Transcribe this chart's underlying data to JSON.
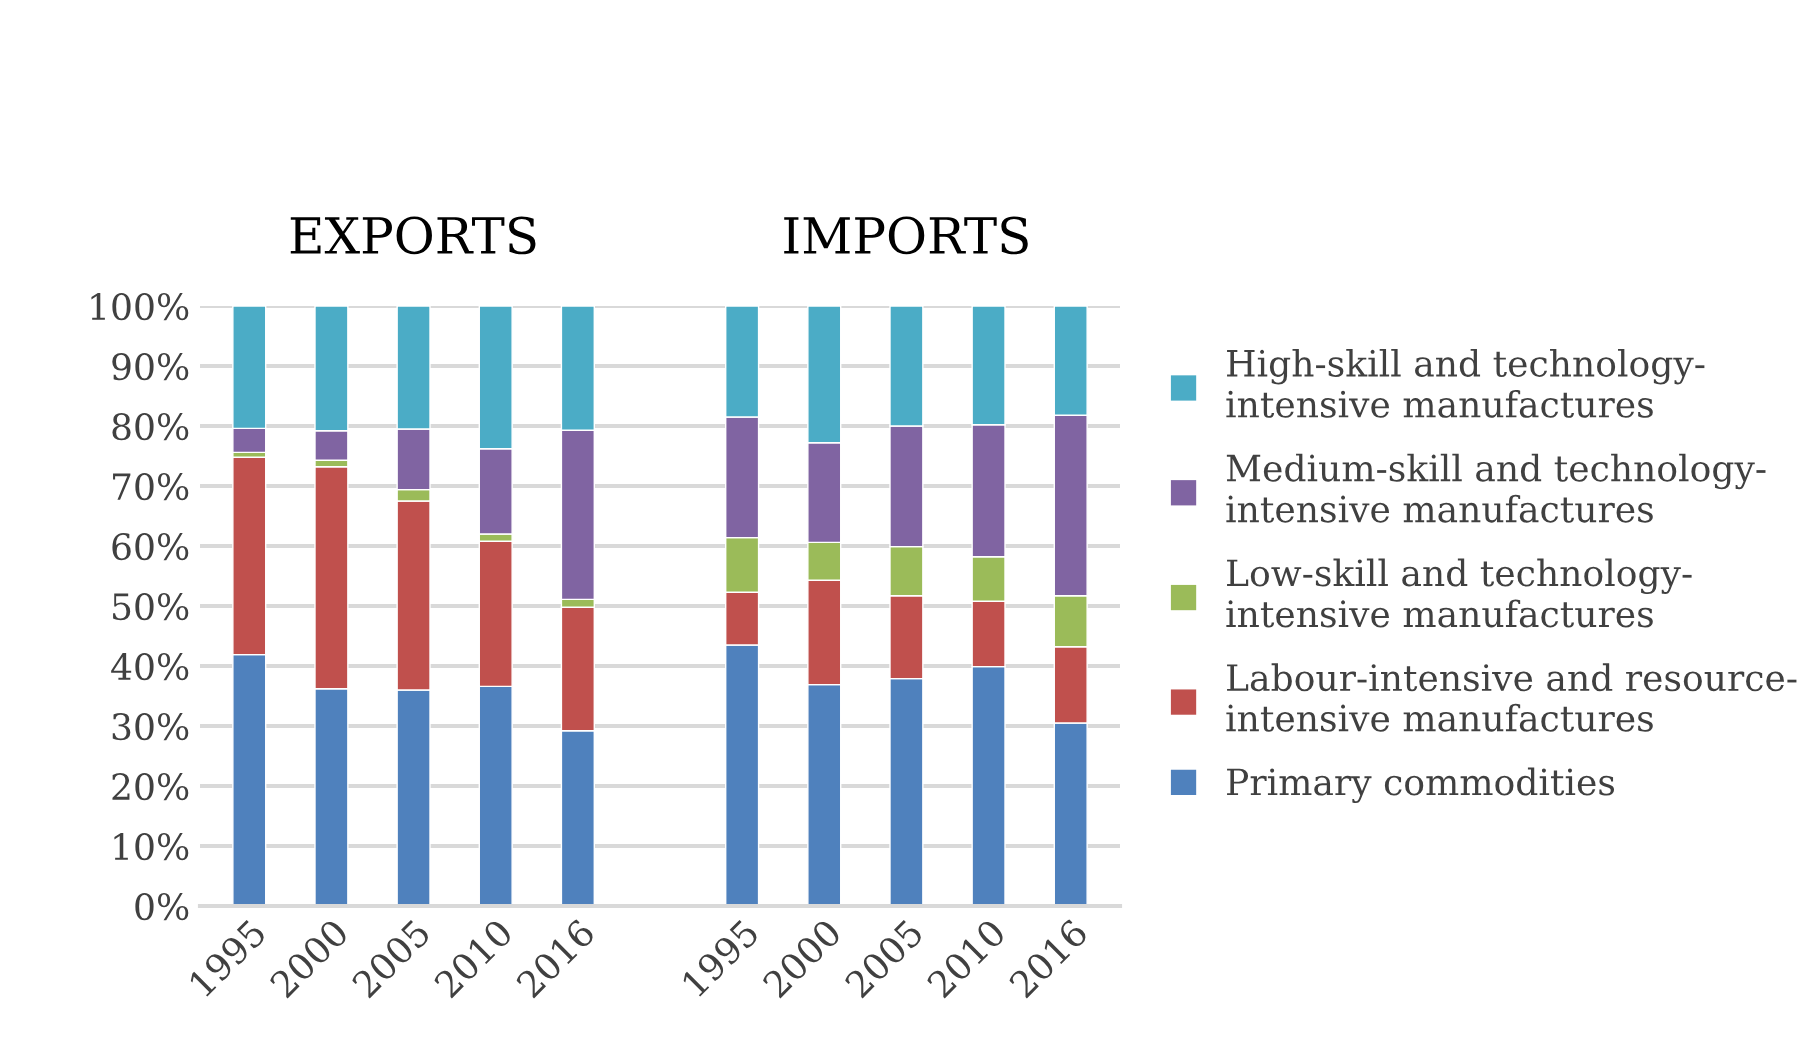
{
  "chart_data": {
    "type": "bar",
    "stacked": true,
    "categories": [
      "1995",
      "2000",
      "2005",
      "2010",
      "2016",
      null,
      "1995",
      "2000",
      "2005",
      "2010",
      "2016"
    ],
    "series": [
      {
        "name": "Primary commodities",
        "color": "#4f81bd",
        "values": [
          41.9,
          36.2,
          36.0,
          36.6,
          29.2,
          null,
          43.5,
          36.9,
          37.9,
          39.9,
          30.5
        ]
      },
      {
        "name": "Labour-intensive and resource-\nintensive manufactures",
        "color": "#c0504d",
        "values": [
          32.9,
          37.0,
          31.5,
          24.2,
          20.6,
          null,
          8.8,
          17.4,
          13.8,
          10.9,
          12.7
        ]
      },
      {
        "name": "Low-skill and technology-\nintensive manufactures",
        "color": "#9bbb59",
        "values": [
          0.8,
          1.1,
          1.9,
          1.2,
          1.3,
          null,
          9.1,
          6.3,
          8.2,
          7.4,
          8.5
        ]
      },
      {
        "name": "Medium-skill and technology-\nintensive manufactures",
        "color": "#8064a2",
        "values": [
          4.0,
          4.9,
          10.1,
          14.2,
          28.2,
          null,
          20.1,
          16.6,
          20.1,
          22.0,
          30.1
        ]
      },
      {
        "name": "High-skill and technology-\nintensive manufactures",
        "color": "#4bacc6",
        "values": [
          20.4,
          20.8,
          20.5,
          23.8,
          20.7,
          null,
          18.5,
          22.8,
          20.0,
          19.8,
          18.2
        ]
      }
    ],
    "annotations": [
      "EXPORTS",
      "IMPORTS"
    ],
    "ylim": [
      0,
      100
    ],
    "yticks": [
      {
        "value": 0,
        "label": "0%"
      },
      {
        "value": 10,
        "label": "10%"
      },
      {
        "value": 20,
        "label": "20%"
      },
      {
        "value": 30,
        "label": "30%"
      },
      {
        "value": 40,
        "label": "40%"
      },
      {
        "value": 50,
        "label": "50%"
      },
      {
        "value": 60,
        "label": "60%"
      },
      {
        "value": 70,
        "label": "70%"
      },
      {
        "value": 80,
        "label": "80%"
      },
      {
        "value": 90,
        "label": "90%"
      },
      {
        "value": 100,
        "label": "100%"
      }
    ],
    "grid": "y",
    "legend": "right"
  }
}
